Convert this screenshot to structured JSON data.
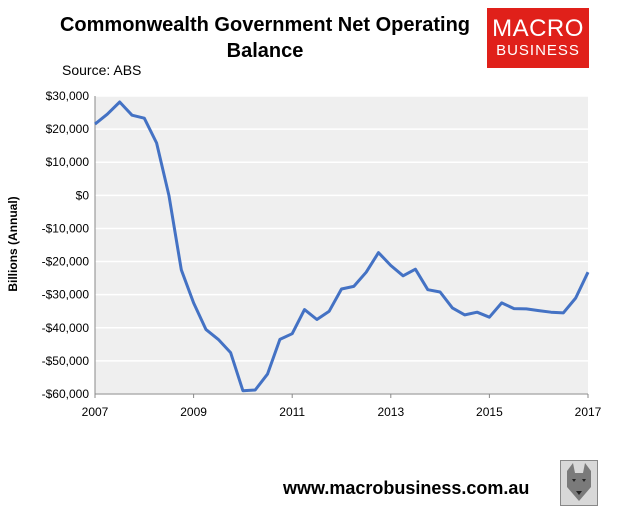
{
  "header": {
    "title": "Commonwealth Government Net Operating Balance",
    "source": "Source: ABS"
  },
  "logo": {
    "line1": "MACRO",
    "line2": "BUSINESS"
  },
  "footer": {
    "url": "www.macrobusiness.com.au"
  },
  "colors": {
    "line": "#4472c4",
    "plot_bg": "#efefef",
    "grid": "#ffffff",
    "logo_bg": "#e0201a"
  },
  "chart_data": {
    "type": "line",
    "title": "Commonwealth Government Net Operating Balance",
    "xlabel": "",
    "ylabel": "Billions (Annual)",
    "ylim": [
      -60000,
      30000
    ],
    "xlim": [
      2007,
      2017
    ],
    "yticks": [
      30000,
      20000,
      10000,
      0,
      -10000,
      -20000,
      -30000,
      -40000,
      -50000,
      -60000
    ],
    "ytick_labels": [
      "$30,000",
      "$20,000",
      "$10,000",
      "$0",
      "-$10,000",
      "-$20,000",
      "-$30,000",
      "-$40,000",
      "-$50,000",
      "-$60,000"
    ],
    "xticks": [
      2007,
      2009,
      2011,
      2013,
      2015,
      2017
    ],
    "xtick_labels": [
      "2007",
      "2009",
      "2011",
      "2013",
      "2015",
      "2017"
    ],
    "grid": true,
    "series": [
      {
        "x": [
          2007,
          2007.25,
          2007.5,
          2007.75,
          2008,
          2008.25,
          2008.5,
          2008.75,
          2009,
          2009.25,
          2009.5,
          2009.75,
          2010,
          2010.25,
          2010.5,
          2010.75,
          2011,
          2011.25,
          2011.5,
          2011.75,
          2012,
          2012.25,
          2012.5,
          2012.75,
          2013,
          2013.25,
          2013.5,
          2013.75,
          2014,
          2014.25,
          2014.5,
          2014.75,
          2015,
          2015.25,
          2015.5,
          2015.75,
          2016,
          2016.25,
          2016.5,
          2016.75,
          2017
        ],
        "values": [
          21500,
          24500,
          28200,
          24200,
          23300,
          15800,
          0,
          -22500,
          -32500,
          -40500,
          -43500,
          -47500,
          -59000,
          -58800,
          -54000,
          -43500,
          -41800,
          -34500,
          -37500,
          -35000,
          -28300,
          -27500,
          -23200,
          -17300,
          -21200,
          -24300,
          -22300,
          -28500,
          -29200,
          -34000,
          -36100,
          -35300,
          -36800,
          -32500,
          -34200,
          -34300,
          -34800,
          -35300,
          -35500,
          -31000,
          -23200
        ]
      }
    ]
  }
}
